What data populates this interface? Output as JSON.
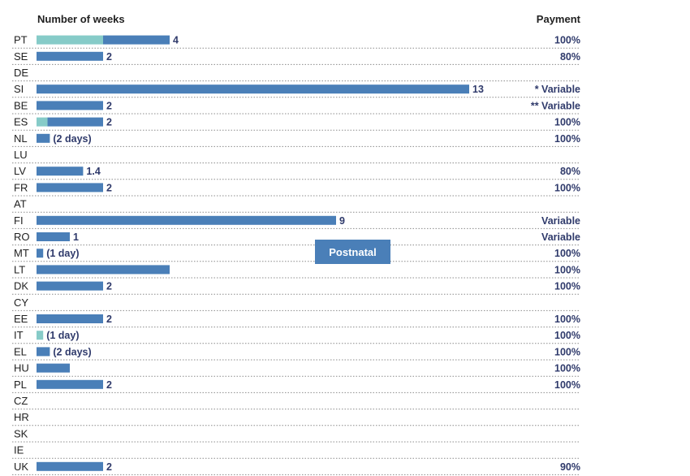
{
  "colors": {
    "main_bar": "#4a7fb8",
    "secondary_bar": "#86cbc8",
    "text_dark": "#2f3a6b",
    "legend_bg": "#4a7fb8"
  },
  "chart_data": {
    "type": "bar",
    "orientation": "horizontal",
    "stacked": true,
    "x_header": "Number of weeks",
    "payment_header": "Payment",
    "legend": [
      "Postnatal"
    ],
    "xlim": [
      0,
      13
    ],
    "grid": false,
    "rows": [
      {
        "country": "PT",
        "secondary": 2,
        "main": 2,
        "label": "4",
        "payment": "100%"
      },
      {
        "country": "SE",
        "secondary": 0,
        "main": 2,
        "label": "2",
        "payment": "80%"
      },
      {
        "country": "DE",
        "secondary": 0,
        "main": 0,
        "label": "",
        "payment": ""
      },
      {
        "country": "SI",
        "secondary": 0,
        "main": 13,
        "label": "13",
        "payment": "* Variable"
      },
      {
        "country": "BE",
        "secondary": 0,
        "main": 2,
        "label": "2",
        "payment": "** Variable"
      },
      {
        "country": "ES",
        "secondary": 0.33,
        "main": 1.67,
        "label": "2",
        "payment": "100%"
      },
      {
        "country": "NL",
        "secondary": 0,
        "main": 0.4,
        "label": "(2 days)",
        "payment": "100%"
      },
      {
        "country": "LU",
        "secondary": 0,
        "main": 0,
        "label": "",
        "payment": ""
      },
      {
        "country": "LV",
        "secondary": 0,
        "main": 1.4,
        "label": "1.4",
        "payment": "80%"
      },
      {
        "country": "FR",
        "secondary": 0,
        "main": 2,
        "label": "2",
        "payment": "100%"
      },
      {
        "country": "AT",
        "secondary": 0,
        "main": 0,
        "label": "",
        "payment": ""
      },
      {
        "country": "FI",
        "secondary": 0,
        "main": 9,
        "label": "9",
        "payment": "Variable"
      },
      {
        "country": "RO",
        "secondary": 0,
        "main": 1,
        "label": "1",
        "payment": "Variable"
      },
      {
        "country": "MT",
        "secondary": 0,
        "main": 0.2,
        "label": "(1 day)",
        "payment": "100%"
      },
      {
        "country": "LT",
        "secondary": 0,
        "main": 4,
        "label": "",
        "payment": "100%"
      },
      {
        "country": "DK",
        "secondary": 0,
        "main": 2,
        "label": "2",
        "payment": "100%"
      },
      {
        "country": "CY",
        "secondary": 0,
        "main": 0,
        "label": "",
        "payment": ""
      },
      {
        "country": "EE",
        "secondary": 0,
        "main": 2,
        "label": "2",
        "payment": "100%"
      },
      {
        "country": "IT",
        "secondary": 0.2,
        "main": 0,
        "label": "(1 day)",
        "payment": "100%"
      },
      {
        "country": "EL",
        "secondary": 0,
        "main": 0.4,
        "label": "(2 days)",
        "payment": "100%"
      },
      {
        "country": "HU",
        "secondary": 0,
        "main": 1,
        "label": "",
        "payment": "100%"
      },
      {
        "country": "PL",
        "secondary": 0,
        "main": 2,
        "label": "2",
        "payment": "100%"
      },
      {
        "country": "CZ",
        "secondary": 0,
        "main": 0,
        "label": "",
        "payment": ""
      },
      {
        "country": "HR",
        "secondary": 0,
        "main": 0,
        "label": "",
        "payment": ""
      },
      {
        "country": "SK",
        "secondary": 0,
        "main": 0,
        "label": "",
        "payment": ""
      },
      {
        "country": "IE",
        "secondary": 0,
        "main": 0,
        "label": "",
        "payment": ""
      },
      {
        "country": "UK",
        "secondary": 0,
        "main": 2,
        "label": "2",
        "payment": "90%"
      }
    ]
  }
}
